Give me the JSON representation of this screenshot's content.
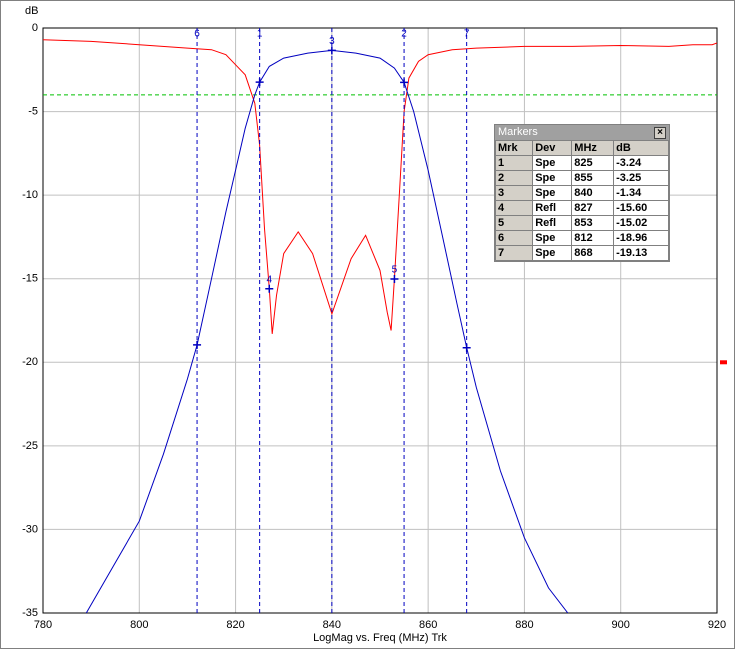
{
  "chart_data": {
    "type": "line",
    "y_label": "dB",
    "x_label": "LogMag vs. Freq (MHz)  Trk",
    "xlim": [
      780,
      920
    ],
    "xticks": [
      780,
      800,
      820,
      840,
      860,
      880,
      900,
      920
    ],
    "ylim": [
      -35,
      0
    ],
    "yticks": [
      0,
      -5,
      -10,
      -15,
      -20,
      -25,
      -30,
      -35
    ],
    "grid": true,
    "grid_color": "#c0c0c0",
    "limit_line": -4,
    "limit_color": "#00c000",
    "reference_level": -20,
    "reference_color": "#ff0000",
    "series": [
      {
        "color": "#ff0000",
        "x": [
          780,
          790,
          800,
          810,
          815,
          818,
          820,
          822,
          824,
          825,
          826,
          827,
          827.6,
          828.5,
          830,
          833,
          836,
          840,
          844,
          847,
          850,
          851.5,
          852.3,
          853,
          854,
          855,
          856,
          858,
          860,
          865,
          870,
          880,
          890,
          900,
          910,
          915,
          919,
          920
        ],
        "values": [
          -0.7,
          -0.8,
          -1.0,
          -1.2,
          -1.3,
          -1.6,
          -2.2,
          -2.8,
          -4.5,
          -7,
          -12,
          -15.6,
          -18.3,
          -16,
          -13.5,
          -12.2,
          -13.5,
          -17.1,
          -13.8,
          -12.4,
          -14.5,
          -17,
          -18.1,
          -15.02,
          -10,
          -5,
          -3,
          -2,
          -1.6,
          -1.3,
          -1.2,
          -1.1,
          -1.1,
          -1.05,
          -1.1,
          -1.0,
          -1.0,
          -0.9
        ]
      },
      {
        "color": "#0000c0",
        "x": [
          789,
          795,
          800,
          805,
          810,
          812,
          815,
          818,
          820,
          822,
          824,
          825,
          827,
          830,
          835,
          840,
          845,
          850,
          853,
          855,
          857,
          860,
          863,
          866,
          868,
          870,
          875,
          880,
          885,
          889
        ],
        "values": [
          -35,
          -32,
          -29.5,
          -25.5,
          -21,
          -18.96,
          -15,
          -11,
          -8.5,
          -6,
          -4,
          -3.24,
          -2.3,
          -1.8,
          -1.5,
          -1.34,
          -1.5,
          -1.8,
          -2.4,
          -3.25,
          -5,
          -8.5,
          -12.5,
          -16.5,
          -19.13,
          -21.5,
          -26.5,
          -30.5,
          -33.5,
          -35
        ]
      }
    ],
    "marker_color": "#0000c0",
    "markers": {
      "title": "Markers",
      "columns": [
        "Mrk",
        "Dev",
        "MHz",
        "dB"
      ],
      "rows": [
        [
          "1",
          "Spe",
          "825",
          "-3.24"
        ],
        [
          "2",
          "Spe",
          "855",
          "-3.25"
        ],
        [
          "3",
          "Spe",
          "840",
          "-1.34"
        ],
        [
          "4",
          "Refl",
          "827",
          "-15.60"
        ],
        [
          "5",
          "Refl",
          "853",
          "-15.02"
        ],
        [
          "6",
          "Spe",
          "812",
          "-18.96"
        ],
        [
          "7",
          "Spe",
          "868",
          "-19.13"
        ]
      ]
    }
  }
}
